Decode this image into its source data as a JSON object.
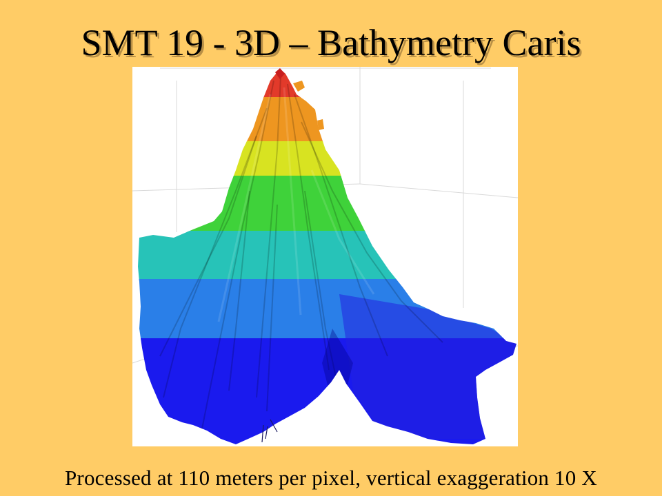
{
  "slide": {
    "title": "SMT 19 - 3D – Bathymetry Caris",
    "caption": "Processed at 110 meters per pixel, vertical exaggeration 10 X"
  },
  "figure": {
    "subject": "seamount-3d-bathymetry-render",
    "background_color": "#FFCC66",
    "depth_band_colors": [
      "#1a1aee",
      "#2a7fe8",
      "#27c3b8",
      "#3fd23a",
      "#d8e321",
      "#ee9620",
      "#e23a2a"
    ]
  }
}
